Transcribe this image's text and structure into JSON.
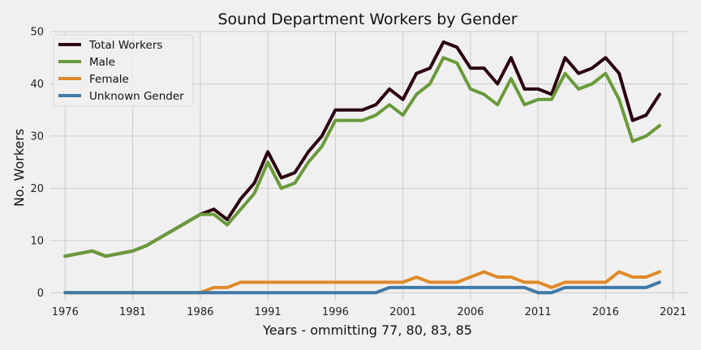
{
  "chart_data": {
    "type": "line",
    "title": "Sound Department Workers by Gender",
    "xlabel": "Years - ommitting 77, 80, 83, 85",
    "ylabel": "No. Workers",
    "xlim": [
      1974.9,
      2022.1
    ],
    "ylim": [
      -1.5,
      50
    ],
    "xticks": [
      1976,
      1981,
      1986,
      1991,
      1996,
      2001,
      2006,
      2011,
      2016,
      2021
    ],
    "yticks": [
      0,
      10,
      20,
      30,
      40,
      50
    ],
    "grid": true,
    "legend_position": "top-left",
    "x": [
      1976,
      1978,
      1979,
      1981,
      1982,
      1984,
      1986,
      1987,
      1988,
      1989,
      1990,
      1991,
      1992,
      1993,
      1994,
      1995,
      1996,
      1997,
      1998,
      1999,
      2000,
      2001,
      2002,
      2003,
      2004,
      2005,
      2006,
      2007,
      2008,
      2009,
      2010,
      2011,
      2012,
      2013,
      2014,
      2015,
      2016,
      2017,
      2018,
      2019,
      2020
    ],
    "series": [
      {
        "name": "Total Workers",
        "color": "#2b0011",
        "values": [
          7,
          8,
          7,
          8,
          9,
          12,
          15,
          16,
          14,
          18,
          21,
          27,
          22,
          23,
          27,
          30,
          35,
          35,
          35,
          36,
          39,
          37,
          42,
          43,
          48,
          47,
          43,
          43,
          40,
          45,
          39,
          39,
          38,
          45,
          42,
          43,
          45,
          42,
          33,
          34,
          38
        ]
      },
      {
        "name": "Male",
        "color": "#6a9a3a",
        "values": [
          7,
          8,
          7,
          8,
          9,
          12,
          15,
          15,
          13,
          16,
          19,
          25,
          20,
          21,
          25,
          28,
          33,
          33,
          33,
          34,
          36,
          34,
          38,
          40,
          45,
          44,
          39,
          38,
          36,
          41,
          36,
          37,
          37,
          42,
          39,
          40,
          42,
          37,
          29,
          30,
          32
        ]
      },
      {
        "name": "Female",
        "color": "#e08a2a",
        "values": [
          0,
          0,
          0,
          0,
          0,
          0,
          0,
          1,
          1,
          2,
          2,
          2,
          2,
          2,
          2,
          2,
          2,
          2,
          2,
          2,
          2,
          2,
          3,
          2,
          2,
          2,
          3,
          4,
          3,
          3,
          2,
          2,
          1,
          2,
          2,
          2,
          2,
          4,
          3,
          3,
          4
        ]
      },
      {
        "name": "Unknown Gender",
        "color": "#3f7aa8",
        "values": [
          0,
          0,
          0,
          0,
          0,
          0,
          0,
          0,
          0,
          0,
          0,
          0,
          0,
          0,
          0,
          0,
          0,
          0,
          0,
          0,
          1,
          1,
          1,
          1,
          1,
          1,
          1,
          1,
          1,
          1,
          1,
          0,
          0,
          1,
          1,
          1,
          1,
          1,
          1,
          1,
          2
        ]
      }
    ]
  }
}
